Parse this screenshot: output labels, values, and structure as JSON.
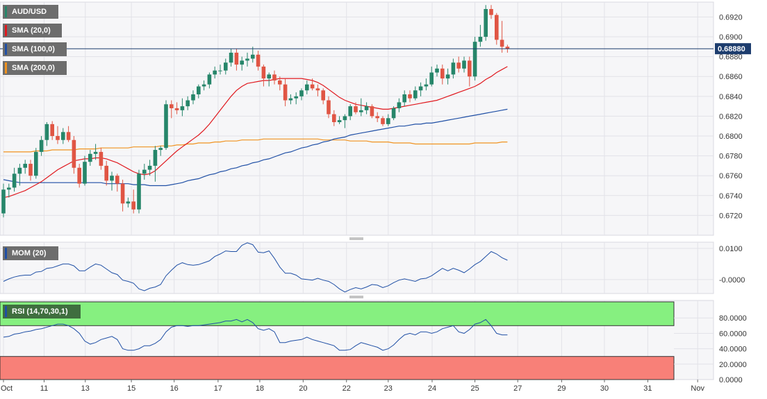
{
  "chart_data": [
    {
      "type": "candlestick",
      "title": "AUD/USD",
      "ylim": [
        0.67,
        0.6935
      ],
      "ytick_labels": [
        "0.6920",
        "0.6900",
        "0.6880",
        "0.6860",
        "0.6840",
        "0.6820",
        "0.6800",
        "0.6780",
        "0.6760",
        "0.6740",
        "0.6720"
      ],
      "yticks": [
        0.692,
        0.69,
        0.688,
        0.686,
        0.684,
        0.682,
        0.68,
        0.678,
        0.676,
        0.674,
        0.672
      ],
      "current_price": 0.6888,
      "current_price_label": "0.68880",
      "legend": [
        {
          "label": "AUD/USD",
          "color": "#26866a"
        },
        {
          "label": "SMA (20,0)",
          "color": "#e0181e"
        },
        {
          "label": "SMA (100,0)",
          "color": "#1f4fa5"
        },
        {
          "label": "SMA (200,0)",
          "color": "#f0921e"
        }
      ],
      "candles": [
        [
          0.6722,
          0.6752,
          0.6718,
          0.6746
        ],
        [
          0.6746,
          0.6752,
          0.6738,
          0.6748
        ],
        [
          0.6748,
          0.6768,
          0.6744,
          0.6762
        ],
        [
          0.6762,
          0.6772,
          0.675,
          0.6768
        ],
        [
          0.6768,
          0.6776,
          0.6762,
          0.6772
        ],
        [
          0.6772,
          0.6776,
          0.6755,
          0.676
        ],
        [
          0.676,
          0.6788,
          0.6757,
          0.6784
        ],
        [
          0.6784,
          0.68,
          0.678,
          0.6796
        ],
        [
          0.6796,
          0.6814,
          0.679,
          0.6812
        ],
        [
          0.6812,
          0.6815,
          0.6796,
          0.68
        ],
        [
          0.68,
          0.681,
          0.6792,
          0.6796
        ],
        [
          0.6796,
          0.6808,
          0.6792,
          0.6804
        ],
        [
          0.6804,
          0.681,
          0.6794,
          0.6796
        ],
        [
          0.6796,
          0.68,
          0.6762,
          0.6768
        ],
        [
          0.6768,
          0.6772,
          0.6748,
          0.6752
        ],
        [
          0.6752,
          0.678,
          0.675,
          0.6774
        ],
        [
          0.6774,
          0.6786,
          0.677,
          0.6782
        ],
        [
          0.6782,
          0.6792,
          0.6776,
          0.6784
        ],
        [
          0.6784,
          0.6788,
          0.6766,
          0.677
        ],
        [
          0.677,
          0.6775,
          0.675,
          0.6755
        ],
        [
          0.6755,
          0.6764,
          0.6745,
          0.676
        ],
        [
          0.676,
          0.6762,
          0.6744,
          0.6752
        ],
        [
          0.6752,
          0.6756,
          0.6724,
          0.6732
        ],
        [
          0.6732,
          0.6738,
          0.6728,
          0.6734
        ],
        [
          0.6734,
          0.6746,
          0.6722,
          0.6726
        ],
        [
          0.6726,
          0.6766,
          0.6722,
          0.6762
        ],
        [
          0.6762,
          0.6772,
          0.6756,
          0.6766
        ],
        [
          0.6766,
          0.6776,
          0.676,
          0.677
        ],
        [
          0.677,
          0.679,
          0.6754,
          0.6786
        ],
        [
          0.6786,
          0.679,
          0.678,
          0.6788
        ],
        [
          0.6788,
          0.6836,
          0.6786,
          0.6832
        ],
        [
          0.6832,
          0.6836,
          0.6818,
          0.6828
        ],
        [
          0.6828,
          0.6834,
          0.6822,
          0.6826
        ],
        [
          0.6826,
          0.6838,
          0.682,
          0.683
        ],
        [
          0.683,
          0.684,
          0.6826,
          0.6836
        ],
        [
          0.6836,
          0.6846,
          0.6832,
          0.6842
        ],
        [
          0.6842,
          0.6852,
          0.6838,
          0.685
        ],
        [
          0.685,
          0.6856,
          0.6846,
          0.6852
        ],
        [
          0.6852,
          0.6864,
          0.6848,
          0.6862
        ],
        [
          0.6862,
          0.687,
          0.6858,
          0.6866
        ],
        [
          0.6866,
          0.6872,
          0.6862,
          0.6866
        ],
        [
          0.6866,
          0.6878,
          0.6862,
          0.6874
        ],
        [
          0.6874,
          0.6888,
          0.687,
          0.6884
        ],
        [
          0.6884,
          0.6888,
          0.6866,
          0.6872
        ],
        [
          0.6872,
          0.688,
          0.6866,
          0.6876
        ],
        [
          0.6876,
          0.6884,
          0.687,
          0.6878
        ],
        [
          0.6878,
          0.689,
          0.6874,
          0.6882
        ],
        [
          0.6882,
          0.6886,
          0.6866,
          0.687
        ],
        [
          0.687,
          0.6872,
          0.685,
          0.6858
        ],
        [
          0.6858,
          0.6864,
          0.685,
          0.6862
        ],
        [
          0.6862,
          0.6866,
          0.6852,
          0.6856
        ],
        [
          0.6856,
          0.686,
          0.6846,
          0.6852
        ],
        [
          0.6852,
          0.6858,
          0.683,
          0.6836
        ],
        [
          0.6836,
          0.6842,
          0.6832,
          0.6838
        ],
        [
          0.6838,
          0.6844,
          0.6832,
          0.684
        ],
        [
          0.684,
          0.6848,
          0.6836,
          0.6846
        ],
        [
          0.6846,
          0.6856,
          0.6842,
          0.6852
        ],
        [
          0.6852,
          0.6858,
          0.6846,
          0.6848
        ],
        [
          0.6848,
          0.6852,
          0.684,
          0.6846
        ],
        [
          0.6846,
          0.6848,
          0.6832,
          0.6836
        ],
        [
          0.6836,
          0.684,
          0.6818,
          0.6822
        ],
        [
          0.6822,
          0.6826,
          0.681,
          0.6814
        ],
        [
          0.6814,
          0.682,
          0.6812,
          0.6816
        ],
        [
          0.6816,
          0.6822,
          0.6808,
          0.682
        ],
        [
          0.682,
          0.6832,
          0.6816,
          0.683
        ],
        [
          0.683,
          0.6834,
          0.6822,
          0.6824
        ],
        [
          0.6824,
          0.6838,
          0.682,
          0.6826
        ],
        [
          0.6826,
          0.6834,
          0.6822,
          0.683
        ],
        [
          0.683,
          0.6832,
          0.6818,
          0.682
        ],
        [
          0.682,
          0.6824,
          0.6814,
          0.6818
        ],
        [
          0.6818,
          0.682,
          0.681,
          0.6812
        ],
        [
          0.6812,
          0.6822,
          0.681,
          0.6818
        ],
        [
          0.6818,
          0.683,
          0.6816,
          0.6828
        ],
        [
          0.6828,
          0.6838,
          0.6824,
          0.6834
        ],
        [
          0.6834,
          0.6846,
          0.683,
          0.6842
        ],
        [
          0.6842,
          0.6846,
          0.6834,
          0.6838
        ],
        [
          0.6838,
          0.685,
          0.6836,
          0.6846
        ],
        [
          0.6846,
          0.6854,
          0.684,
          0.685
        ],
        [
          0.685,
          0.6858,
          0.6846,
          0.6852
        ],
        [
          0.6852,
          0.687,
          0.685,
          0.6864
        ],
        [
          0.6864,
          0.6872,
          0.686,
          0.6868
        ],
        [
          0.6868,
          0.6872,
          0.6852,
          0.6858
        ],
        [
          0.6858,
          0.6868,
          0.6852,
          0.6862
        ],
        [
          0.6862,
          0.6878,
          0.6858,
          0.6874
        ],
        [
          0.6874,
          0.688,
          0.6864,
          0.6868
        ],
        [
          0.6868,
          0.688,
          0.6864,
          0.6876
        ],
        [
          0.6876,
          0.688,
          0.685,
          0.686
        ],
        [
          0.686,
          0.69,
          0.6856,
          0.6895
        ],
        [
          0.6895,
          0.6912,
          0.689,
          0.69
        ],
        [
          0.69,
          0.6932,
          0.6896,
          0.6928
        ],
        [
          0.6928,
          0.6932,
          0.6918,
          0.6922
        ],
        [
          0.6922,
          0.6924,
          0.6892,
          0.6897
        ],
        [
          0.6897,
          0.6916,
          0.6884,
          0.689
        ],
        [
          0.689,
          0.6892,
          0.6884,
          0.6888
        ]
      ],
      "sma20": [
        0.6738,
        0.6739,
        0.6741,
        0.6743,
        0.6745,
        0.6748,
        0.6751,
        0.6754,
        0.6758,
        0.6762,
        0.6766,
        0.6769,
        0.6772,
        0.6775,
        0.6776,
        0.6777,
        0.6777,
        0.6778,
        0.6778,
        0.6777,
        0.6775,
        0.6773,
        0.677,
        0.6767,
        0.6764,
        0.6762,
        0.6761,
        0.6762,
        0.6765,
        0.677,
        0.6775,
        0.678,
        0.6785,
        0.6789,
        0.6793,
        0.6797,
        0.6801,
        0.6806,
        0.6812,
        0.6819,
        0.6826,
        0.6833,
        0.684,
        0.6846,
        0.685,
        0.6853,
        0.6854,
        0.6855,
        0.6856,
        0.6856,
        0.6857,
        0.6858,
        0.6858,
        0.6858,
        0.6858,
        0.6858,
        0.6857,
        0.6856,
        0.6854,
        0.6851,
        0.6847,
        0.6843,
        0.6839,
        0.6836,
        0.6834,
        0.6832,
        0.6831,
        0.683,
        0.6829,
        0.6828,
        0.6827,
        0.6827,
        0.6828,
        0.6829,
        0.683,
        0.6831,
        0.6832,
        0.6833,
        0.6834,
        0.6835,
        0.6836,
        0.6838,
        0.684,
        0.6842,
        0.6844,
        0.6846,
        0.6848,
        0.685,
        0.6853,
        0.6857,
        0.686,
        0.6864,
        0.6867,
        0.687
      ],
      "sma100": [
        0.6756,
        0.6755,
        0.6754,
        0.6753,
        0.6753,
        0.6753,
        0.6753,
        0.6753,
        0.6753,
        0.6753,
        0.6753,
        0.6753,
        0.6753,
        0.6753,
        0.6753,
        0.6753,
        0.6753,
        0.6753,
        0.6753,
        0.6752,
        0.6752,
        0.6752,
        0.6752,
        0.6752,
        0.6751,
        0.6751,
        0.6751,
        0.675,
        0.675,
        0.675,
        0.675,
        0.6751,
        0.6752,
        0.6753,
        0.6755,
        0.6756,
        0.6757,
        0.6759,
        0.6761,
        0.6762,
        0.6764,
        0.6765,
        0.6767,
        0.6768,
        0.677,
        0.6771,
        0.6773,
        0.6774,
        0.6776,
        0.6777,
        0.6779,
        0.6781,
        0.6783,
        0.6784,
        0.6786,
        0.6788,
        0.6789,
        0.6791,
        0.6792,
        0.6794,
        0.6795,
        0.6797,
        0.6798,
        0.6799,
        0.6801,
        0.6802,
        0.6803,
        0.6804,
        0.6805,
        0.6806,
        0.6807,
        0.6808,
        0.6809,
        0.681,
        0.681,
        0.6811,
        0.6812,
        0.6812,
        0.6813,
        0.6813,
        0.6814,
        0.6815,
        0.6816,
        0.6817,
        0.6818,
        0.6819,
        0.682,
        0.6821,
        0.6822,
        0.6823,
        0.6824,
        0.6825,
        0.6826,
        0.6827
      ],
      "sma200": [
        0.6784,
        0.6784,
        0.6784,
        0.6784,
        0.6784,
        0.6784,
        0.6785,
        0.6785,
        0.6785,
        0.6786,
        0.6786,
        0.6786,
        0.6786,
        0.6786,
        0.6787,
        0.6787,
        0.6787,
        0.6787,
        0.6788,
        0.6788,
        0.6788,
        0.6788,
        0.6788,
        0.6788,
        0.6789,
        0.6789,
        0.6789,
        0.6789,
        0.6789,
        0.679,
        0.679,
        0.679,
        0.6791,
        0.6791,
        0.6792,
        0.6792,
        0.6793,
        0.6793,
        0.6793,
        0.6794,
        0.6794,
        0.6795,
        0.6795,
        0.6795,
        0.6796,
        0.6796,
        0.6796,
        0.6796,
        0.6797,
        0.6797,
        0.6797,
        0.6797,
        0.6797,
        0.6797,
        0.6797,
        0.6797,
        0.6797,
        0.6797,
        0.6797,
        0.6796,
        0.6796,
        0.6796,
        0.6796,
        0.6796,
        0.6795,
        0.6795,
        0.6795,
        0.6795,
        0.6794,
        0.6794,
        0.6794,
        0.6794,
        0.6793,
        0.6793,
        0.6793,
        0.6793,
        0.6792,
        0.6792,
        0.6792,
        0.6792,
        0.6792,
        0.6792,
        0.6792,
        0.6792,
        0.6792,
        0.6792,
        0.6792,
        0.6793,
        0.6793,
        0.6793,
        0.6793,
        0.6793,
        0.6794,
        0.6794
      ],
      "x_labels": [
        "Oct",
        "11",
        "13",
        "15",
        "16",
        "17",
        "18",
        "20",
        "22",
        "23",
        "24",
        "25",
        "27",
        "29",
        "30",
        "31",
        "Nov"
      ],
      "x_label_positions": [
        0,
        7.5,
        15.1,
        23.6,
        31.5,
        39.6,
        47.3,
        55.3,
        63.3,
        71.0,
        79.1,
        87.0,
        94.9,
        103.0,
        110.9,
        118.9,
        128.1
      ]
    },
    {
      "type": "line",
      "title": "MOM (20)",
      "legend_color": "#1f4fa5",
      "ylim": [
        -0.0045,
        0.012
      ],
      "ytick_labels": [
        "0.0100",
        "-0.0000"
      ],
      "yticks": [
        0.01,
        0.0
      ],
      "values": [
        -0.0006,
        0.0002,
        0.0008,
        0.0012,
        0.0014,
        0.0014,
        0.0024,
        0.0026,
        0.0036,
        0.0038,
        0.0044,
        0.005,
        0.005,
        0.0044,
        0.0028,
        0.0028,
        0.004,
        0.005,
        0.0046,
        0.0034,
        0.0022,
        0.0016,
        -0.0002,
        -0.0006,
        -0.0012,
        -0.003,
        -0.0036,
        -0.0028,
        -0.0024,
        -0.0016,
        0.0012,
        0.003,
        0.0046,
        0.0054,
        0.0048,
        0.0046,
        0.0048,
        0.0054,
        0.006,
        0.0074,
        0.0082,
        0.0092,
        0.009,
        0.009,
        0.011,
        0.0118,
        0.0112,
        0.0088,
        0.0086,
        0.0092,
        0.0068,
        0.004,
        0.002,
        0.002,
        0.0014,
        0.0002,
        0.0,
        -0.0002,
        0.0004,
        -0.0002,
        -0.0006,
        -0.0016,
        -0.003,
        -0.004,
        -0.0032,
        -0.0026,
        -0.003,
        -0.0024,
        -0.0016,
        -0.0018,
        -0.0026,
        -0.002,
        -0.001,
        -0.0002,
        0.0002,
        -0.0002,
        -0.0006,
        0.0002,
        0.0004,
        0.0012,
        0.0024,
        0.0036,
        0.0028,
        0.0036,
        0.003,
        0.0022,
        0.0034,
        0.0048,
        0.0058,
        0.0074,
        0.009,
        0.0082,
        0.007,
        0.0062
      ]
    },
    {
      "type": "line",
      "title": "RSI (14,70,30,1)",
      "legend_color": "#1f4fa5",
      "ylim": [
        0,
        100
      ],
      "overbought": 70,
      "oversold": 30,
      "ytick_labels": [
        "80.0000",
        "60.0000",
        "40.0000",
        "20.0000",
        "0.0000"
      ],
      "yticks": [
        80,
        60,
        40,
        20,
        0
      ],
      "values": [
        55,
        56,
        59,
        60,
        62,
        63,
        65,
        66,
        68,
        70,
        72,
        72,
        70,
        66,
        60,
        50,
        46,
        48,
        52,
        54,
        56,
        52,
        40,
        38,
        38,
        40,
        44,
        44,
        47,
        52,
        62,
        68,
        70,
        70,
        69,
        70,
        70,
        71,
        72,
        73,
        74,
        76,
        76,
        78,
        75,
        78,
        74,
        66,
        64,
        66,
        62,
        48,
        48,
        50,
        51,
        52,
        55,
        52,
        50,
        48,
        46,
        44,
        38,
        38,
        39,
        44,
        48,
        46,
        44,
        42,
        38,
        40,
        45,
        52,
        58,
        60,
        58,
        62,
        62,
        60,
        62,
        66,
        68,
        70,
        62,
        60,
        65,
        72,
        74,
        78,
        70,
        60,
        58,
        58
      ]
    }
  ]
}
